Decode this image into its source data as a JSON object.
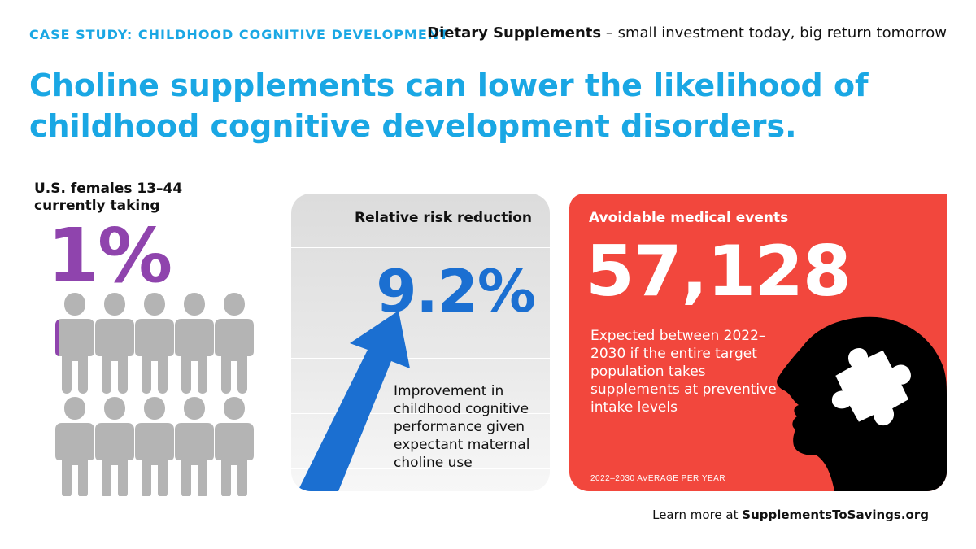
{
  "header": {
    "eyebrow": "CASE STUDY: CHILDHOOD COGNITIVE DEVELOPMENT",
    "tagline_bold": "Dietary Supplements",
    "tagline_rest": " – small investment today, big return tomorrow"
  },
  "headline": {
    "strong": "Choline",
    "rest": " supplements can lower the likelihood of childhood cognitive development disorders."
  },
  "left_panel": {
    "label": "U.S. females 13–44 currently taking",
    "value": "1%",
    "filled_fraction": 0.01,
    "people_count": 10,
    "people_icon": "person-icon"
  },
  "risk_card": {
    "title": "Relative risk reduction",
    "value": "9.2%",
    "description": "Improvement in childhood cognitive performance given expectant maternal choline use",
    "icon": "up-arrow-icon"
  },
  "events_card": {
    "title": "Avoidable medical events",
    "value": "57,128",
    "description": "Expected between 2022–2030 if the entire target population takes supplements at preventive intake levels",
    "footnote": "2022–2030 AVERAGE PER YEAR",
    "icon": "head-puzzle-icon"
  },
  "footer": {
    "prefix": "Learn more at ",
    "link": "SupplementsToSavings.org"
  },
  "colors": {
    "accent_blue": "#1aa7e4",
    "purple": "#8f44ad",
    "dark_blue": "#1b6fd1",
    "red": "#f2473d",
    "grey_person": "#b4b4b4"
  }
}
